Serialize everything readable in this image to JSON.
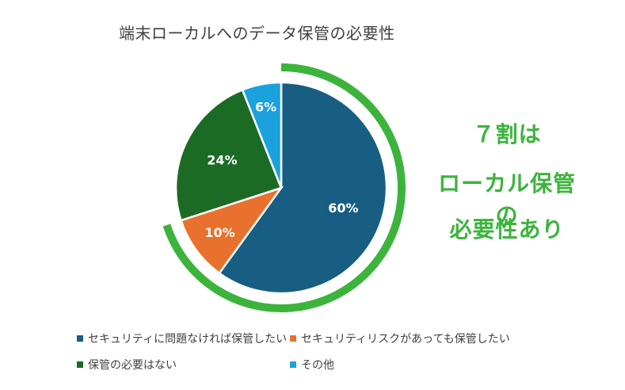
{
  "chart_data": {
    "type": "pie",
    "title": "端末ローカルへのデータ保管の必要性",
    "categories": [
      "セキュリティに問題なければ保管したい",
      "セキュリティリスクがあっても保管したい",
      "保管の必要はない",
      "その他"
    ],
    "values": [
      60,
      10,
      24,
      6
    ],
    "labels": [
      "60%",
      "10%",
      "24%",
      "6%"
    ],
    "colors": [
      "#175e82",
      "#e8712e",
      "#1c6b24",
      "#1ba1dc"
    ],
    "legend": "bottom",
    "highlight_color": "#3cb43c"
  },
  "callout": {
    "line1": "７割は",
    "line2": "ローカル保管の",
    "line3": "必要性あり"
  }
}
